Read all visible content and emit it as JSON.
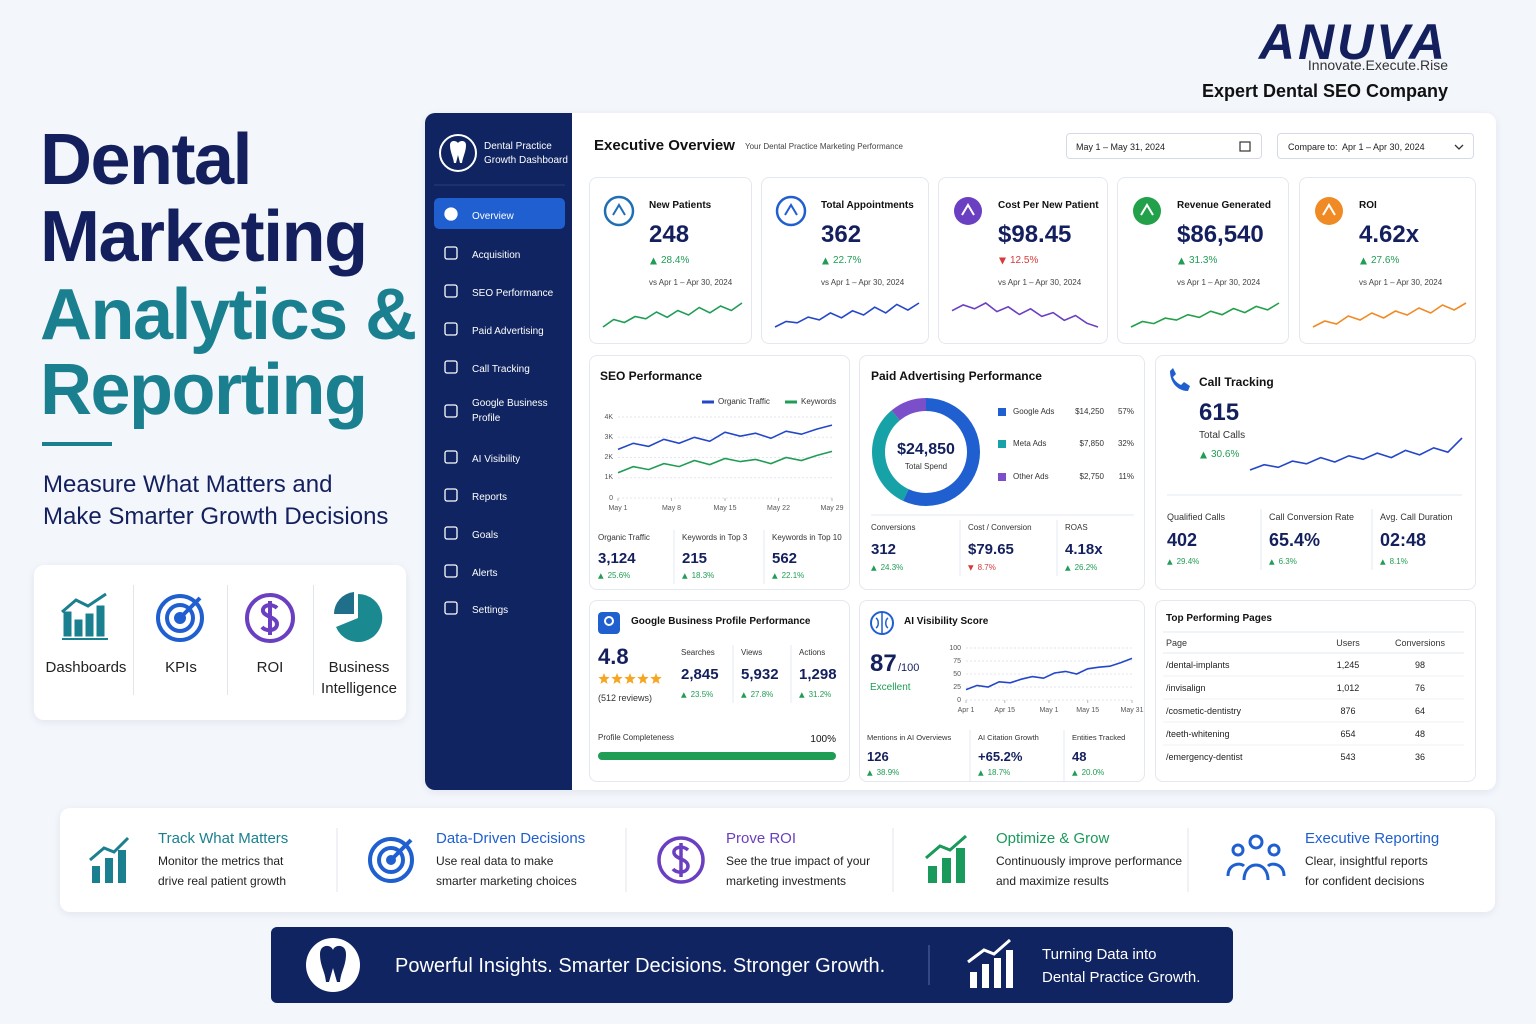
{
  "brand": {
    "logo": "ANUVA",
    "tagline": "Innovate.Execute.Rise",
    "subtitle": "Expert Dental SEO Company"
  },
  "hero": {
    "title_lines": [
      "Dental",
      "Marketing",
      "Analytics &",
      "Reporting"
    ],
    "subtitle_lines": [
      "Measure What Matters and",
      "Make Smarter Growth Decisions"
    ],
    "features": [
      [
        "Dashboards"
      ],
      [
        "KPIs"
      ],
      [
        "ROI"
      ],
      [
        "Business",
        "Intelligence"
      ]
    ]
  },
  "sidebar": {
    "app_name_lines": [
      "Dental Practice",
      "Growth Dashboard"
    ],
    "nav": [
      "Overview",
      "Acquisition",
      "SEO Performance",
      "Paid Advertising",
      "Call Tracking",
      "Google Business Profile",
      "AI Visibility",
      "Reports",
      "Goals",
      "Alerts",
      "Settings"
    ]
  },
  "header": {
    "title": "Executive Overview",
    "subtitle": "Your Dental Practice Marketing Performance",
    "date_range": "May 1 – May 31, 2024",
    "compare": "Compare to:  Apr 1 – Apr 30, 2024"
  },
  "kpis": [
    {
      "label": "New Patients",
      "value": "248",
      "change": "28.4%",
      "direction": "up",
      "comparison": "vs Apr 1 – Apr 30, 2024",
      "color": "#1f9d55",
      "icon_color": "#1f6fb5",
      "trend": [
        3,
        4,
        3.6,
        4.4,
        4.1,
        5,
        4.3,
        5.2,
        4.6,
        5.6,
        4.9,
        5.8,
        5.2,
        6.2
      ]
    },
    {
      "label": "Total Appointments",
      "value": "362",
      "change": "22.7%",
      "direction": "up",
      "comparison": "vs Apr 1 – Apr 30, 2024",
      "color": "#2447c9",
      "icon_color": "#1f5fd0",
      "trend": [
        3.2,
        4,
        3.8,
        4.6,
        4.2,
        5.2,
        4.5,
        5.5,
        4.9,
        6,
        5.2,
        6.4,
        5.6,
        6.6
      ]
    },
    {
      "label": "Cost Per New Patient",
      "value": "$98.45",
      "change": "12.5%",
      "direction": "down",
      "comparison": "vs Apr 1 – Apr 30, 2024",
      "color": "#6a3fc1",
      "icon_color": "#6a3fc1",
      "trend": [
        5.2,
        5.8,
        5.4,
        6,
        5.1,
        5.6,
        4.8,
        5.4,
        4.6,
        5,
        4.2,
        4.7,
        3.9,
        3.5
      ]
    },
    {
      "label": "Revenue Generated",
      "value": "$86,540",
      "change": "31.3%",
      "direction": "up",
      "comparison": "vs Apr 1 – Apr 30, 2024",
      "color": "#23a04a",
      "icon_color": "#23a04a",
      "trend": [
        3,
        3.8,
        3.5,
        4.3,
        4,
        4.8,
        4.4,
        5.3,
        4.8,
        5.7,
        5.1,
        6,
        5.5,
        6.5
      ]
    },
    {
      "label": "ROI",
      "value": "4.62x",
      "change": "27.6%",
      "direction": "up",
      "comparison": "vs Apr 1 – Apr 30, 2024",
      "color": "#f08a24",
      "icon_color": "#f08a24",
      "trend": [
        3.4,
        4,
        3.7,
        4.5,
        4.1,
        4.8,
        4.3,
        5,
        4.6,
        5.3,
        4.8,
        5.6,
        5.1,
        5.8
      ]
    }
  ],
  "seo": {
    "title": "SEO Performance",
    "chart_data": {
      "type": "line",
      "x": [
        1,
        3,
        5,
        7,
        9,
        11,
        13,
        15,
        17,
        19,
        21,
        23,
        25,
        27,
        29
      ],
      "xlim": [
        1,
        29
      ],
      "xticks": [
        {
          "value": 1,
          "label": "May 1"
        },
        {
          "value": 8,
          "label": "May 8"
        },
        {
          "value": 15,
          "label": "May 15"
        },
        {
          "value": 22,
          "label": "May 22"
        },
        {
          "value": 29,
          "label": "May 29"
        }
      ],
      "ylim": [
        0,
        4000
      ],
      "yticks": [
        {
          "value": 0,
          "label": "0"
        },
        {
          "value": 1000,
          "label": "1K"
        },
        {
          "value": 2000,
          "label": "2K"
        },
        {
          "value": 3000,
          "label": "3K"
        },
        {
          "value": 4000,
          "label": "4K"
        }
      ],
      "series": [
        {
          "name": "Organic Traffic",
          "color": "#2447c9",
          "values": [
            2400,
            2700,
            2550,
            2900,
            2700,
            3000,
            2800,
            3250,
            3050,
            3200,
            2950,
            3300,
            3150,
            3400,
            3600
          ]
        },
        {
          "name": "Keywords",
          "color": "#1f9d55",
          "values": [
            1250,
            1550,
            1400,
            1700,
            1550,
            1850,
            1650,
            1950,
            1800,
            1900,
            1700,
            2000,
            1850,
            2100,
            2300
          ]
        }
      ]
    },
    "stats": [
      {
        "label": "Organic Traffic",
        "value": "3,124",
        "change": "25.6%",
        "direction": "up"
      },
      {
        "label": "Keywords in Top 3",
        "value": "215",
        "change": "18.3%",
        "direction": "up"
      },
      {
        "label": "Keywords in Top 10",
        "value": "562",
        "change": "22.1%",
        "direction": "up"
      }
    ]
  },
  "paid": {
    "title": "Paid Advertising Performance",
    "total": "$24,850",
    "total_label": "Total Spend",
    "channels": [
      {
        "name": "Google Ads",
        "spend": "$14,250",
        "share": 57,
        "share_label": "57%",
        "color": "#1f5fd0"
      },
      {
        "name": "Meta Ads",
        "spend": "$7,850",
        "share": 32,
        "share_label": "32%",
        "color": "#17a2a8"
      },
      {
        "name": "Other Ads",
        "spend": "$2,750",
        "share": 11,
        "share_label": "11%",
        "color": "#7b4fc9"
      }
    ],
    "stats": [
      {
        "label": "Conversions",
        "value": "312",
        "change": "24.3%",
        "direction": "up"
      },
      {
        "label": "Cost / Conversion",
        "value": "$79.65",
        "change": "8.7%",
        "direction": "down"
      },
      {
        "label": "ROAS",
        "value": "4.18x",
        "change": "26.2%",
        "direction": "up"
      }
    ]
  },
  "calls": {
    "title": "Call Tracking",
    "value": "615",
    "value_label": "Total Calls",
    "change": "30.6%",
    "direction": "up",
    "trend": [
      2,
      2.6,
      2.3,
      3,
      2.7,
      3.4,
      2.9,
      3.6,
      3.2,
      3.9,
      3.4,
      4.2,
      3.7,
      4.5,
      4,
      5.6
    ],
    "stats": [
      {
        "label": "Qualified Calls",
        "value": "402",
        "change": "29.4%",
        "direction": "up"
      },
      {
        "label": "Call Conversion Rate",
        "value": "65.4%",
        "change": "6.3%",
        "direction": "up"
      },
      {
        "label": "Avg. Call Duration",
        "value": "02:48",
        "change": "8.1%",
        "direction": "up"
      }
    ]
  },
  "gbp": {
    "title": "Google Business Profile Performance",
    "rating": "4.8",
    "reviews": "(512 reviews)",
    "stats": [
      {
        "label": "Searches",
        "value": "2,845",
        "change": "23.5%",
        "direction": "up"
      },
      {
        "label": "Views",
        "value": "5,932",
        "change": "27.8%",
        "direction": "up"
      },
      {
        "label": "Actions",
        "value": "1,298",
        "change": "31.2%",
        "direction": "up"
      }
    ],
    "completeness_label_text": "Profile Completeness",
    "completeness": 100,
    "completeness_label": "100%"
  },
  "ai": {
    "title": "AI Visibility Score",
    "score": "87",
    "score_max": "/100",
    "rating": "Excellent",
    "chart_data": {
      "type": "line",
      "x": [
        1,
        5,
        9,
        13,
        17,
        21,
        25,
        29,
        33,
        37,
        41,
        45,
        49,
        53,
        57,
        61
      ],
      "xlim": [
        1,
        61
      ],
      "xticks": [
        {
          "value": 1,
          "label": "Apr 1"
        },
        {
          "value": 15,
          "label": "Apr 15"
        },
        {
          "value": 31,
          "label": "May 1"
        },
        {
          "value": 45,
          "label": "May 15"
        },
        {
          "value": 61,
          "label": "May 31"
        }
      ],
      "ylim": [
        0,
        100
      ],
      "yticks": [
        0,
        25,
        50,
        75,
        100
      ],
      "series": [
        {
          "name": "AI Visibility Score",
          "color": "#2447c9",
          "values": [
            20,
            28,
            25,
            35,
            33,
            40,
            45,
            42,
            52,
            55,
            50,
            60,
            63,
            65,
            72,
            80
          ]
        }
      ]
    },
    "stats": [
      {
        "label": "Mentions in AI Overviews",
        "value": "126",
        "change": "38.9%",
        "direction": "up"
      },
      {
        "label": "AI Citation Growth",
        "value": "+65.2%",
        "change": "18.7%",
        "direction": "up"
      },
      {
        "label": "Entities Tracked",
        "value": "48",
        "change": "20.0%",
        "direction": "up"
      }
    ]
  },
  "top_pages": {
    "title": "Top Performing Pages",
    "columns": [
      "Page",
      "Users",
      "Conversions"
    ],
    "rows": [
      [
        "/dental-implants",
        "1,245",
        "98"
      ],
      [
        "/invisalign",
        "1,012",
        "76"
      ],
      [
        "/cosmetic-dentistry",
        "876",
        "64"
      ],
      [
        "/teeth-whitening",
        "654",
        "48"
      ],
      [
        "/emergency-dentist",
        "543",
        "36"
      ]
    ]
  },
  "benefits": [
    {
      "title": "Track What Matters",
      "lines": [
        "Monitor the metrics that",
        "drive real patient growth"
      ]
    },
    {
      "title": "Data-Driven Decisions",
      "lines": [
        "Use real data to make",
        "smarter marketing choices"
      ]
    },
    {
      "title": "Prove ROI",
      "lines": [
        "See the true impact of your",
        "marketing investments"
      ]
    },
    {
      "title": "Optimize & Grow",
      "lines": [
        "Continuously improve performance",
        "and maximize results"
      ]
    },
    {
      "title": "Executive Reporting",
      "lines": [
        "Clear, insightful reports",
        "for confident decisions"
      ]
    }
  ],
  "banner": {
    "headline": "Powerful Insights. Smarter Decisions. Stronger Growth.",
    "lines": [
      "Turning Data into",
      "Dental Practice Growth."
    ]
  }
}
